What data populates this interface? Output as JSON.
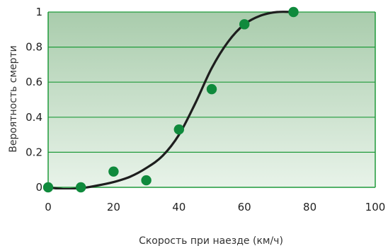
{
  "chart_data": {
    "type": "scatter",
    "title": "",
    "xlabel": "Скорость при наезде (км/ч)",
    "ylabel": "Вероятность смерти",
    "xlim": [
      0,
      100
    ],
    "ylim": [
      0,
      1
    ],
    "x_ticks": [
      "0",
      "20",
      "40",
      "60",
      "80",
      "100"
    ],
    "y_ticks": [
      "0",
      "0.2",
      "0.4",
      "0.6",
      "0.8",
      "1"
    ],
    "grid": "horizontal",
    "legend": "none",
    "series": [
      {
        "type": "scatter",
        "x": [
          0,
          10,
          20,
          30,
          40,
          50,
          60,
          75
        ],
        "y": [
          0.0,
          0.0,
          0.09,
          0.04,
          0.33,
          0.56,
          0.93,
          1.0
        ]
      },
      {
        "type": "line",
        "x": [
          0,
          5,
          10,
          15,
          20,
          25,
          30,
          35,
          40,
          45,
          50,
          55,
          60,
          65,
          70,
          75
        ],
        "y": [
          0.0,
          -0.01,
          -0.005,
          0.01,
          0.03,
          0.06,
          0.11,
          0.18,
          0.3,
          0.48,
          0.68,
          0.83,
          0.93,
          0.98,
          1.0,
          1.0
        ]
      }
    ],
    "colors": {
      "marker": "#0f8a3c",
      "curve": "#1e1e1e",
      "grid": "#1f9a3a",
      "plot_top": "#a9ccac",
      "plot_bottom": "#e8f3e9"
    }
  }
}
